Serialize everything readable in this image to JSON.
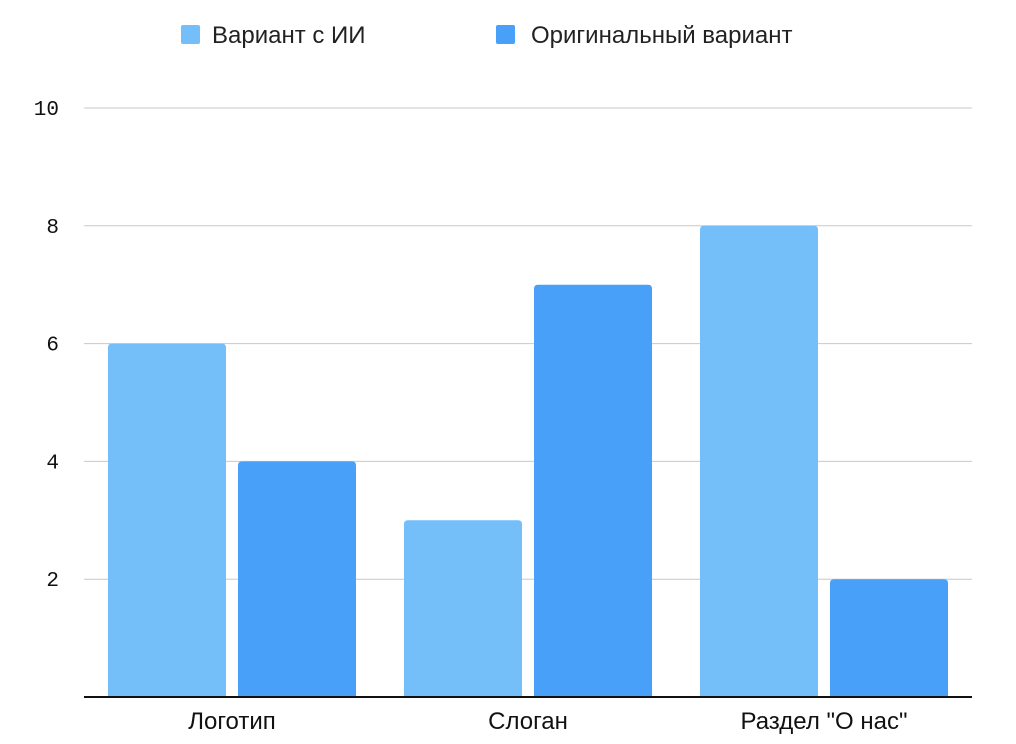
{
  "chart_data": {
    "type": "bar",
    "categories": [
      "Логотип",
      "Слоган",
      "Раздел \"О нас\""
    ],
    "series": [
      {
        "name": "Вариант с ИИ",
        "values": [
          6,
          3,
          8
        ],
        "color": "#74BEFA"
      },
      {
        "name": "Оригинальный вариант",
        "values": [
          4,
          7,
          2
        ],
        "color": "#48A0F8"
      }
    ],
    "yticks": [
      2,
      4,
      6,
      8,
      10
    ],
    "ylim": [
      0,
      10
    ],
    "grid": true,
    "legend_position": "top",
    "title": "",
    "xlabel": "",
    "ylabel": ""
  }
}
